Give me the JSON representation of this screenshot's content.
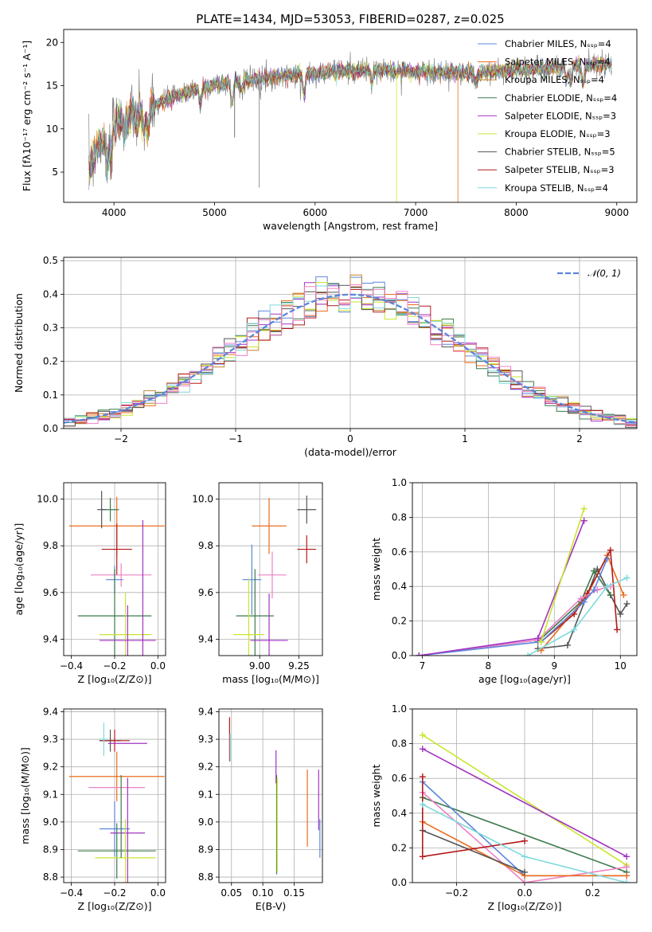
{
  "figure": {
    "title": "PLATE=1434, MJD=53053, FIBERID=0287, z=0.025"
  },
  "palette": [
    "#5b86dc",
    "#ec6d1d",
    "#c6862a",
    "#3c7a4a",
    "#a233c2",
    "#c9e52f",
    "#555555",
    "#b31b1b",
    "#7fd9dc",
    "#ee80c4",
    "#777777"
  ],
  "chart_data": [
    {
      "id": "spectrum",
      "type": "line",
      "xlabel": "wavelength [Angstrom, rest frame]",
      "ylabel": "Flux [fλ10⁻¹⁷ erg cm⁻² s⁻¹ A⁻¹]",
      "xlim": [
        3500,
        9200
      ],
      "ylim": [
        1.5,
        21.5
      ],
      "xticks": [
        4000,
        5000,
        6000,
        7000,
        8000,
        9000
      ],
      "yticks": [
        5,
        10,
        15,
        20
      ],
      "grid": false,
      "legend": "top-right",
      "series": [
        {
          "name": "Chabrier MILES, Nₛₛₚ=4",
          "color": "#5b86dc"
        },
        {
          "name": "Salpeter MILES, Nₛₛₚ=4",
          "color": "#ec6d1d"
        },
        {
          "name": "Kroupa MILES, Nₛₛₚ=4",
          "color": "#c6862a"
        },
        {
          "name": "Chabrier ELODIE, Nₛₛₚ=4",
          "color": "#3c7a4a"
        },
        {
          "name": "Salpeter ELODIE, Nₛₛₚ=3",
          "color": "#a233c2"
        },
        {
          "name": "Kroupa ELODIE, Nₛₛₚ=3",
          "color": "#c9e52f"
        },
        {
          "name": "Chabrier STELIB, Nₛₛₚ=5",
          "color": "#555555"
        },
        {
          "name": "Salpeter STELIB, Nₛₛₚ=3",
          "color": "#b31b1b"
        },
        {
          "name": "Kroupa STELIB, Nₛₛₚ=4",
          "color": "#7fd9dc"
        }
      ],
      "continuum": [
        [
          3750,
          5.5
        ],
        [
          3850,
          8
        ],
        [
          4000,
          10.5
        ],
        [
          4150,
          11.5
        ],
        [
          4300,
          12
        ],
        [
          4500,
          13.3
        ],
        [
          4800,
          14.5
        ],
        [
          5200,
          15.5
        ],
        [
          5600,
          16
        ],
        [
          6000,
          16.5
        ],
        [
          6500,
          16.8
        ],
        [
          7000,
          16.6
        ],
        [
          7500,
          16.5
        ],
        [
          8000,
          16.8
        ],
        [
          8500,
          17.2
        ],
        [
          9000,
          17.5
        ]
      ]
    },
    {
      "id": "residuals",
      "type": "histogram",
      "xlabel": "(data-model)/error",
      "ylabel": "Normed distribution",
      "xlim": [
        -2.5,
        2.5
      ],
      "ylim": [
        0,
        0.51
      ],
      "xticks": [
        -2,
        -1,
        0,
        1,
        2
      ],
      "yticks": [
        0.0,
        0.1,
        0.2,
        0.3,
        0.4,
        0.5
      ],
      "grid": true,
      "legend": "top-right",
      "reference": {
        "name": "𝒩(0, 1)",
        "mean": 0,
        "sigma": 1,
        "color": "#5b86dc"
      },
      "bin_width": 0.1
    },
    {
      "id": "age-vs-z",
      "type": "errorbar",
      "xlabel": "Z [log₁₀(Z/Z⊙)]",
      "ylabel": "age  [log₁₀(age/yr)]",
      "xlim": [
        -0.435,
        0.035
      ],
      "ylim": [
        9.33,
        10.07
      ],
      "xticks": [
        -0.4,
        -0.2,
        0.0
      ],
      "yticks": [
        9.4,
        9.6,
        9.8,
        10.0
      ],
      "grid": true,
      "points": [
        {
          "x": -0.19,
          "xerr": 0.22,
          "y": 9.885,
          "yerr": 0.125,
          "color": "#ec6d1d"
        },
        {
          "x": -0.22,
          "xerr": 0.04,
          "y": 9.955,
          "yerr": 0.05,
          "color": "#3c7a4a"
        },
        {
          "x": -0.26,
          "xerr": 0.02,
          "y": 9.955,
          "yerr": 0.08,
          "color": "#555555"
        },
        {
          "x": -0.19,
          "xerr": 0.07,
          "y": 9.785,
          "yerr": 0.11,
          "color": "#b31b1b"
        },
        {
          "x": -0.17,
          "xerr": 0.14,
          "y": 9.675,
          "yerr": 0.05,
          "color": "#ee80c4"
        },
        {
          "x": -0.2,
          "xerr": 0.04,
          "y": 9.655,
          "yerr": 0.06,
          "color": "#5b86dc"
        },
        {
          "x": -0.2,
          "xerr": 0.17,
          "y": 9.5,
          "yerr": 0.2,
          "color": "#3c7a4a"
        },
        {
          "x": -0.15,
          "xerr": 0.12,
          "y": 9.42,
          "yerr": 0.18,
          "color": "#c9e52f"
        },
        {
          "x": -0.14,
          "xerr": 0.13,
          "y": 9.395,
          "yerr": 0.15,
          "color": "#a233c2"
        },
        {
          "x": -0.07,
          "xerr": 0.0,
          "y": 9.62,
          "yerr": 0.29,
          "color": "#a233c2"
        }
      ]
    },
    {
      "id": "age-vs-mass",
      "type": "errorbar",
      "xlabel": "mass [log₁₀(M/M⊙)]",
      "ylabel": "",
      "xlim": [
        8.74,
        9.4
      ],
      "ylim": [
        9.33,
        10.07
      ],
      "xticks": [
        9.0,
        9.25
      ],
      "yticks": [
        9.4,
        9.6,
        9.8,
        10.0
      ],
      "grid": true,
      "points": [
        {
          "x": 9.06,
          "xerr": 0.11,
          "y": 9.885,
          "yerr": 0.12,
          "color": "#ec6d1d"
        },
        {
          "x": 9.3,
          "xerr": 0.06,
          "y": 9.955,
          "yerr": 0.06,
          "color": "#555555"
        },
        {
          "x": 9.3,
          "xerr": 0.06,
          "y": 9.785,
          "yerr": 0.06,
          "color": "#b31b1b"
        },
        {
          "x": 9.08,
          "xerr": 0.09,
          "y": 9.675,
          "yerr": 0.1,
          "color": "#ee80c4"
        },
        {
          "x": 8.95,
          "xerr": 0.06,
          "y": 9.655,
          "yerr": 0.15,
          "color": "#5b86dc"
        },
        {
          "x": 8.97,
          "xerr": 0.12,
          "y": 9.5,
          "yerr": 0.2,
          "color": "#3c7a4a"
        },
        {
          "x": 8.93,
          "xerr": 0.1,
          "y": 9.42,
          "yerr": 0.24,
          "color": "#c9e52f"
        },
        {
          "x": 9.06,
          "xerr": 0.12,
          "y": 9.395,
          "yerr": 0.2,
          "color": "#a233c2"
        }
      ]
    },
    {
      "id": "mass-weight-vs-age",
      "type": "line",
      "xlabel": "age  [log₁₀(age/yr)]",
      "ylabel": "mass weight",
      "xlim": [
        6.85,
        10.25
      ],
      "ylim": [
        0.0,
        1.0
      ],
      "xticks": [
        7,
        8,
        9,
        10
      ],
      "yticks": [
        0.0,
        0.2,
        0.4,
        0.6,
        0.8,
        1.0
      ],
      "grid": true,
      "series": [
        {
          "color": "#555555",
          "points": [
            [
              8.75,
              0.04
            ],
            [
              9.2,
              0.06
            ],
            [
              9.65,
              0.5
            ],
            [
              9.85,
              0.35
            ],
            [
              10.0,
              0.24
            ],
            [
              10.1,
              0.3
            ]
          ]
        },
        {
          "color": "#3c7a4a",
          "points": [
            [
              8.75,
              0.08
            ],
            [
              9.4,
              0.31
            ],
            [
              9.6,
              0.49
            ],
            [
              9.85,
              0.35
            ]
          ]
        },
        {
          "color": "#ec6d1d",
          "points": [
            [
              8.8,
              0.03
            ],
            [
              9.5,
              0.35
            ],
            [
              9.8,
              0.58
            ],
            [
              10.05,
              0.35
            ]
          ]
        },
        {
          "color": "#b31b1b",
          "points": [
            [
              8.8,
              0.08
            ],
            [
              9.3,
              0.24
            ],
            [
              9.5,
              0.36
            ],
            [
              9.85,
              0.61
            ],
            [
              9.95,
              0.15
            ]
          ]
        },
        {
          "color": "#ee80c4",
          "points": [
            [
              6.95,
              0.0
            ],
            [
              8.75,
              0.09
            ],
            [
              9.4,
              0.33
            ],
            [
              9.65,
              0.38
            ],
            [
              9.85,
              0.4
            ]
          ]
        },
        {
          "color": "#5b86dc",
          "points": [
            [
              6.95,
              0.0
            ],
            [
              8.8,
              0.08
            ],
            [
              9.45,
              0.31
            ],
            [
              9.6,
              0.38
            ],
            [
              9.8,
              0.56
            ]
          ]
        },
        {
          "color": "#a233c2",
          "points": [
            [
              6.95,
              0.0
            ],
            [
              8.75,
              0.1
            ],
            [
              9.45,
              0.78
            ]
          ]
        },
        {
          "color": "#c9e52f",
          "points": [
            [
              8.8,
              0.08
            ],
            [
              9.45,
              0.85
            ]
          ]
        },
        {
          "color": "#7fd9dc",
          "points": [
            [
              8.6,
              0.0
            ],
            [
              9.3,
              0.15
            ],
            [
              9.8,
              0.4
            ],
            [
              10.1,
              0.45
            ]
          ]
        }
      ]
    },
    {
      "id": "mass-vs-z",
      "type": "errorbar",
      "xlabel": "Z [log₁₀(Z/Z⊙)]",
      "ylabel": "mass [log₁₀(M/M⊙)]",
      "xlim": [
        -0.435,
        0.035
      ],
      "ylim": [
        8.78,
        9.41
      ],
      "xticks": [
        -0.4,
        -0.2,
        0.0
      ],
      "yticks": [
        8.8,
        8.9,
        9.0,
        9.1,
        9.2,
        9.3,
        9.4
      ],
      "grid": true,
      "points": [
        {
          "x": -0.19,
          "xerr": 0.22,
          "y": 9.165,
          "yerr": 0.09,
          "color": "#ec6d1d"
        },
        {
          "x": -0.22,
          "xerr": 0.05,
          "y": 9.295,
          "yerr": 0.04,
          "color": "#555555"
        },
        {
          "x": -0.2,
          "xerr": 0.07,
          "y": 9.295,
          "yerr": 0.04,
          "color": "#b31b1b"
        },
        {
          "x": -0.25,
          "xerr": 0.02,
          "y": 9.3,
          "yerr": 0.06,
          "color": "#7fd9dc"
        },
        {
          "x": -0.14,
          "xerr": 0.09,
          "y": 9.285,
          "yerr": 0.0,
          "color": "#a233c2"
        },
        {
          "x": -0.19,
          "xerr": 0.13,
          "y": 9.125,
          "yerr": 0.0,
          "color": "#ee80c4"
        },
        {
          "x": -0.2,
          "xerr": 0.07,
          "y": 8.975,
          "yerr": 0.1,
          "color": "#5b86dc"
        },
        {
          "x": -0.14,
          "xerr": 0.08,
          "y": 8.96,
          "yerr": 0.2,
          "color": "#a233c2"
        },
        {
          "x": -0.19,
          "xerr": 0.18,
          "y": 8.895,
          "yerr": 0.1,
          "color": "#3c7a4a"
        },
        {
          "x": -0.15,
          "xerr": 0.14,
          "y": 8.87,
          "yerr": 0.14,
          "color": "#c9e52f"
        },
        {
          "x": -0.17,
          "xerr": 0.0,
          "y": 9.02,
          "yerr": 0.15,
          "color": "#3c7a4a"
        }
      ]
    },
    {
      "id": "mass-vs-ebv",
      "type": "errorbar",
      "xlabel": "E(B-V)",
      "ylabel": "",
      "xlim": [
        0.03,
        0.195
      ],
      "ylim": [
        8.78,
        9.41
      ],
      "xticks": [
        0.05,
        0.1,
        0.15
      ],
      "yticks": [
        8.8,
        8.9,
        9.0,
        9.1,
        9.2,
        9.3,
        9.4
      ],
      "grid": true,
      "points": [
        {
          "x": 0.047,
          "xerr": 0.0,
          "y": 9.3,
          "yerr": 0.08,
          "color": "#b31b1b"
        },
        {
          "x": 0.048,
          "xerr": 0.0,
          "y": 9.27,
          "yerr": 0.05,
          "color": "#7fd9dc"
        },
        {
          "x": 0.121,
          "xerr": 0.0,
          "y": 9.2,
          "yerr": 0.06,
          "color": "#a233c2"
        },
        {
          "x": 0.122,
          "xerr": 0.0,
          "y": 8.99,
          "yerr": 0.18,
          "color": "#3c7a4a"
        },
        {
          "x": 0.123,
          "xerr": 0.0,
          "y": 8.99,
          "yerr": 0.17,
          "color": "#c9e52f"
        },
        {
          "x": 0.171,
          "xerr": 0.0,
          "y": 9.05,
          "yerr": 0.14,
          "color": "#ec6d1d"
        },
        {
          "x": 0.189,
          "xerr": 0.0,
          "y": 9.08,
          "yerr": 0.11,
          "color": "#a233c2"
        },
        {
          "x": 0.191,
          "xerr": 0.0,
          "y": 8.94,
          "yerr": 0.07,
          "color": "#5b86dc"
        }
      ]
    },
    {
      "id": "mass-weight-vs-z",
      "type": "line",
      "xlabel": "Z [log₁₀(Z/Z⊙)]",
      "ylabel": "mass weight",
      "xlim": [
        -0.33,
        0.33
      ],
      "ylim": [
        0.0,
        1.0
      ],
      "xticks": [
        -0.2,
        0.0,
        0.2
      ],
      "yticks": [
        0.0,
        0.2,
        0.4,
        0.6,
        0.8,
        1.0
      ],
      "grid": true,
      "series": [
        {
          "color": "#c9e52f",
          "points": [
            [
              -0.3,
              0.85
            ],
            [
              0.3,
              0.1
            ]
          ]
        },
        {
          "color": "#a233c2",
          "points": [
            [
              -0.3,
              0.77
            ],
            [
              0.3,
              0.15
            ]
          ]
        },
        {
          "color": "#3c7a4a",
          "points": [
            [
              -0.3,
              0.49
            ],
            [
              0.3,
              0.06
            ]
          ]
        },
        {
          "color": "#5b86dc",
          "points": [
            [
              -0.3,
              0.58
            ],
            [
              0.0,
              0.04
            ],
            [
              0.3,
              0.04
            ]
          ]
        },
        {
          "color": "#ee80c4",
          "points": [
            [
              -0.3,
              0.52
            ],
            [
              0.0,
              0.0
            ],
            [
              0.3,
              0.09
            ]
          ]
        },
        {
          "color": "#ec6d1d",
          "points": [
            [
              -0.3,
              0.35
            ],
            [
              0.0,
              0.04
            ],
            [
              0.3,
              0.04
            ]
          ]
        },
        {
          "color": "#555555",
          "points": [
            [
              -0.3,
              0.3
            ],
            [
              0.0,
              0.06
            ]
          ]
        },
        {
          "color": "#b31b1b",
          "points": [
            [
              -0.3,
              0.61
            ],
            [
              -0.3,
              0.15
            ],
            [
              0.0,
              0.24
            ]
          ]
        },
        {
          "color": "#7fd9dc",
          "points": [
            [
              -0.3,
              0.45
            ],
            [
              0.0,
              0.15
            ],
            [
              0.3,
              0.0
            ]
          ]
        }
      ]
    }
  ]
}
